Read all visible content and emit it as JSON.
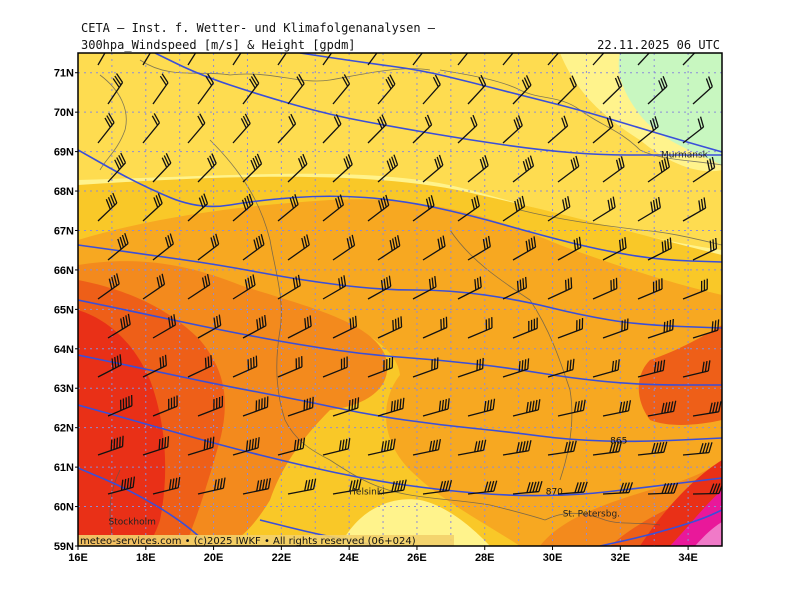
{
  "header": {
    "line1": "CETA — Inst. f. Wetter- und Klimafolgenanalysen —",
    "subtitle": "300hpa_Windspeed [m/s] & Height [gpdm]",
    "datetime": "22.11.2025 06 UTC"
  },
  "footer": {
    "copyright": "meteo-services.com • (c)2025 IWKF • All rights reserved (06+024)"
  },
  "map": {
    "lat_labels": [
      "71N",
      "70N",
      "69N",
      "68N",
      "67N",
      "66N",
      "65N",
      "64N",
      "63N",
      "62N",
      "61N",
      "60N",
      "59N"
    ],
    "lon_labels": [
      "16E",
      "18E",
      "20E",
      "22E",
      "24E",
      "26E",
      "28E",
      "30E",
      "32E",
      "34E"
    ],
    "cities": [
      {
        "name": "Murmansk",
        "lon": 33.2,
        "lat": 68.85
      },
      {
        "name": "Helsinki",
        "lon": 24.0,
        "lat": 60.3
      },
      {
        "name": "Stockholm",
        "lon": 16.9,
        "lat": 59.55
      },
      {
        "name": "St. Petersbg.",
        "lon": 30.3,
        "lat": 59.75
      }
    ],
    "contour_labels": [
      {
        "text": "865",
        "lon": 31.7,
        "lat": 61.6
      },
      {
        "text": "870",
        "lon": 29.8,
        "lat": 60.3
      }
    ],
    "colors": {
      "green": "#c8f7c0",
      "light_yellow": "#fff38c",
      "yellow": "#fedc50",
      "gold": "#f9c828",
      "orange_light": "#f7a821",
      "orange": "#f38a1d",
      "dark_orange": "#ee5f18",
      "red": "#e93017",
      "magenta": "#e9189a",
      "pink": "#f07ac8",
      "contour": "#3a4fd9",
      "grid": "#8c8cd9"
    }
  }
}
